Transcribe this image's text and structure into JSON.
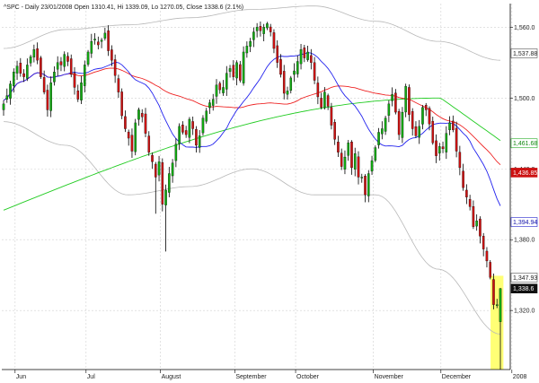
{
  "chart_data": {
    "type": "candlestick",
    "title": "^SPC - Daily 23/01/2008 Open 1310.41, Hi 1339.09, Lo 1270.05, Close 1338.6 (2.1%)",
    "ylim": [
      1270,
      1580
    ],
    "y_ticks": [
      1320.0,
      1380.0,
      1440.0,
      1500.0,
      1560.0
    ],
    "y_tick_labels": [
      "1,320.0",
      "1,380.0",
      "1,440.0",
      "1,500.0",
      "1,560.0"
    ],
    "month_labels": [
      {
        "label": "Jun",
        "index": 5
      },
      {
        "label": "Jul",
        "index": 26
      },
      {
        "label": "August",
        "index": 48
      },
      {
        "label": "September",
        "index": 70
      },
      {
        "label": "October",
        "index": 88
      },
      {
        "label": "November",
        "index": 111
      },
      {
        "label": "December",
        "index": 131
      },
      {
        "label": "2008",
        "index": 152
      }
    ],
    "ohlc_start": [
      1490,
      1498,
      1485,
      1495
    ],
    "closes": [
      1498,
      1502,
      1512,
      1522,
      1527,
      1521,
      1518,
      1528,
      1535,
      1541,
      1532,
      1518,
      1505,
      1490,
      1513,
      1522,
      1530,
      1528,
      1537,
      1531,
      1520,
      1509,
      1499,
      1513,
      1528,
      1539,
      1548,
      1550,
      1545,
      1549,
      1555,
      1540,
      1532,
      1519,
      1505,
      1485,
      1474,
      1466,
      1455,
      1479,
      1490,
      1484,
      1470,
      1454,
      1446,
      1433,
      1446,
      1410,
      1422,
      1436,
      1445,
      1461,
      1476,
      1471,
      1469,
      1482,
      1474,
      1460,
      1468,
      1483,
      1489,
      1496,
      1499,
      1511,
      1507,
      1509,
      1521,
      1525,
      1518,
      1530,
      1515,
      1539,
      1544,
      1548,
      1556,
      1560,
      1557,
      1560,
      1563,
      1556,
      1542,
      1530,
      1520,
      1504,
      1506,
      1517,
      1523,
      1531,
      1541,
      1534,
      1539,
      1530,
      1515,
      1501,
      1492,
      1505,
      1493,
      1477,
      1465,
      1454,
      1442,
      1450,
      1462,
      1441,
      1453,
      1433,
      1433,
      1418,
      1436,
      1447,
      1458,
      1471,
      1474,
      1483,
      1495,
      1503,
      1488,
      1469,
      1488,
      1510,
      1486,
      1474,
      1468,
      1476,
      1492,
      1490,
      1478,
      1462,
      1451,
      1459,
      1457,
      1470,
      1479,
      1473,
      1455,
      1441,
      1424,
      1416,
      1408,
      1391,
      1396,
      1383,
      1372,
      1362,
      1348,
      1325,
      1325,
      1338.6
    ],
    "bollinger_upper_ticks": [
      1542,
      1558,
      1562,
      1568,
      1575,
      1578,
      1565,
      1548,
      1532
    ],
    "bollinger_lower_ticks": [
      1480,
      1460,
      1418,
      1425,
      1440,
      1418,
      1418,
      1355,
      1300
    ],
    "series": [
      {
        "name": "",
        "values": [
          1394.94
        ]
      },
      {
        "name": "",
        "values": [
          1436.85
        ]
      },
      {
        "name": "",
        "values": [
          1461.68
        ]
      }
    ],
    "price_tags": [
      {
        "label": "1,537.88",
        "value": 1537.88,
        "style": "outline"
      },
      {
        "label": "1,461.68",
        "value": 1461.68,
        "style": "green"
      },
      {
        "label": "1,436.85",
        "value": 1436.85,
        "style": "red"
      },
      {
        "label": "1,394.94",
        "value": 1394.94,
        "style": "blue"
      },
      {
        "label": "1,347.93",
        "value": 1347.93,
        "style": "outline"
      },
      {
        "label": "1,338.6",
        "value": 1338.6,
        "style": "black"
      }
    ],
    "colors": {
      "up_candle": "#11aa11",
      "down_candle": "#cc1111",
      "wick": "#000000",
      "ma_short": "#2222ee",
      "ma_mid": "#ee2222",
      "ma_long": "#22cc22",
      "bollinger": "#b8b8b8",
      "grid": "#d0d0d0",
      "highlight": "#ffff66"
    },
    "grid": true,
    "highlight_last_bars": 3
  }
}
